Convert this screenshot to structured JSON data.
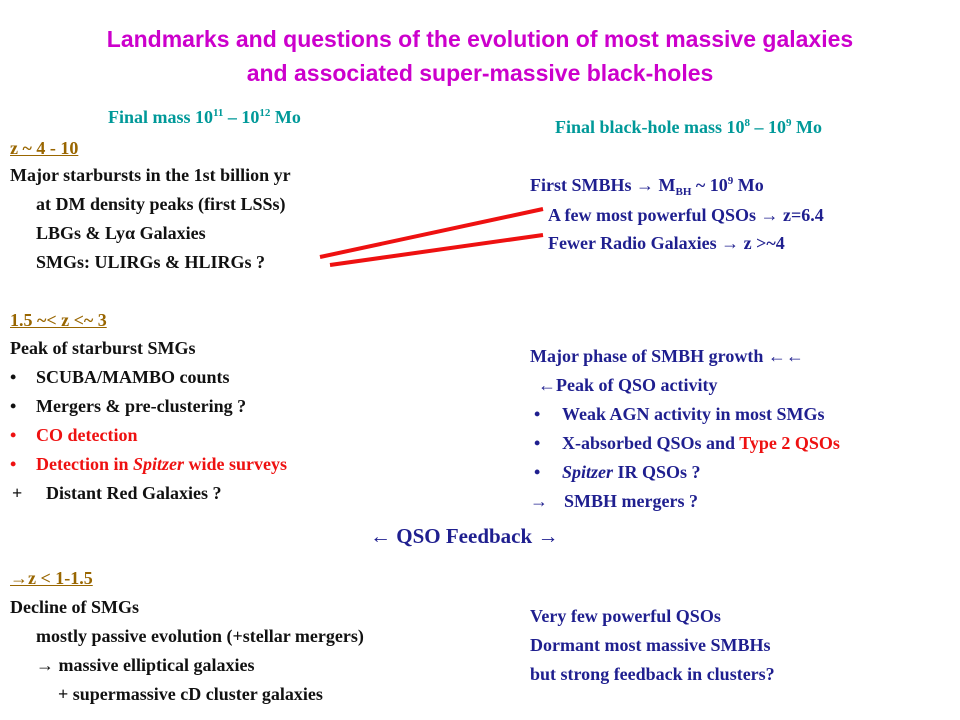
{
  "title": {
    "line1": "Landmarks and questions of the evolution of most massive galaxies",
    "line2": "and associated super-massive black-holes"
  },
  "left": {
    "heading_prefix": "Final mass 10",
    "heading_exp1": "11",
    "heading_mid": " – 10",
    "heading_exp2": "12",
    "heading_suffix": " Mo",
    "era1": {
      "label": "z ~ 4 - 10",
      "lines": [
        "Major starbursts in the 1st billion yr",
        "at DM density peaks (first LSSs)",
        "LBGs & Lyα Galaxies",
        "SMGs: ULIRGs & HLIRGs ?"
      ]
    },
    "era2": {
      "label": "1.5 ~< z <~ 3",
      "heading": "Peak of starburst SMGs",
      "bullets": [
        "SCUBA/MAMBO counts",
        "Mergers & pre-clustering ?",
        "CO detection"
      ],
      "bullet4_pre": "Detection in ",
      "bullet4_italic": "Spitzer",
      "bullet4_post": " wide surveys",
      "plus": "+",
      "plus_text": "Distant Red Galaxies ?"
    },
    "era3": {
      "arrow": "→",
      "label": "z < 1-1.5",
      "lines": [
        "Decline of SMGs",
        "mostly passive evolution (+stellar mergers)",
        "massive elliptical galaxies",
        "+ supermassive cD cluster galaxies"
      ],
      "line3_arrow": "→"
    }
  },
  "right": {
    "heading_prefix": "Final black-hole mass  10",
    "heading_exp1": "8",
    "heading_mid": " – 10",
    "heading_exp2": "9",
    "heading_suffix": " Mo",
    "block1": {
      "l1_pre": "First SMBHs ",
      "l1_arrow": "→",
      "l1_m": " M",
      "l1_sub": "BH",
      "l1_mid": " ~ 10",
      "l1_exp": "9",
      "l1_post": " Mo",
      "l2_pre": "A few most powerful QSOs ",
      "l2_arrow": "→",
      "l2_post": " z=6.4",
      "l3_pre": "Fewer Radio Galaxies ",
      "l3_arrow": "→",
      "l3_post": " z >~4"
    },
    "block2": {
      "l1": "Major phase of SMBH growth ",
      "l1_arrows": "←←",
      "l2_arrow": "←",
      "l2": "Peak of QSO activity",
      "bullet1": "Weak AGN activity in most SMGs",
      "bullet2_pre": "X-absorbed QSOs and ",
      "bullet2_red": "Type 2 QSOs",
      "bullet3_italic": "Spitzer",
      "bullet3_post": " IR QSOs ?",
      "l6_arrow": "→",
      "l6": "SMBH mergers ?"
    },
    "block3": {
      "lines": [
        "Very few powerful QSOs",
        "Dormant most massive SMBHs",
        "but strong feedback in clusters?"
      ]
    }
  },
  "feedback": {
    "left_arrow": "←",
    "label": "QSO Feedback",
    "right_arrow": "→"
  },
  "bullet_glyph": "•",
  "colors": {
    "title": "#cc00cc",
    "teal": "#009999",
    "navy": "#1f1f8f",
    "olive": "#996600",
    "red": "#ee1111",
    "connector": "#ee1111"
  }
}
